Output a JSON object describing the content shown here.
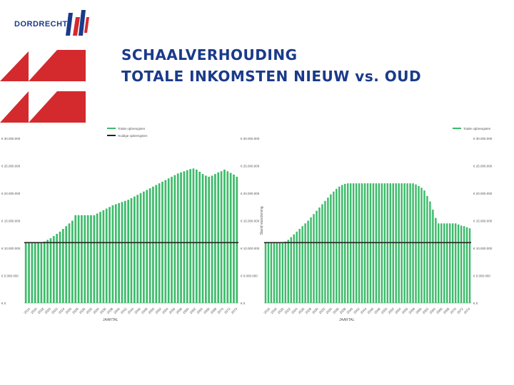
{
  "header": {
    "logo_text": "DORDRECHT",
    "title_line1": "SCHAALVERHOUDING",
    "title_line2": "TOTALE INKOMSTEN NIEUW vs. OUD"
  },
  "colors": {
    "brand_blue": "#1a3a8a",
    "brand_red": "#d42a2e",
    "bar_green": "#3dbb6a",
    "baseline": "#222222"
  },
  "chart_data": [
    {
      "type": "bar",
      "legend": [
        "Totale opbrengsten",
        "Huidige opbrengsten"
      ],
      "xlabel": "JAARTAL",
      "ylabel": "",
      "y_ticks_left": [
        "€ 0",
        "€ 5.000.000",
        "€ 10.000.000",
        "€ 15.000.000",
        "€ 20.000.000",
        "€ 25.000.000",
        "€ 30.000.000"
      ],
      "y_ticks_right": [
        "€ 0",
        "€ 5.000.000",
        "€ 10.000.000",
        "€ 15.000.000",
        "€ 20.000.000",
        "€ 25.000.000",
        "€ 30.000.000"
      ],
      "x_ticks": [
        "2014",
        "2016",
        "2018",
        "2020",
        "2022",
        "2024",
        "2026",
        "2028",
        "2030",
        "2032",
        "2034",
        "2036",
        "2038",
        "2040",
        "2042",
        "2044",
        "2046",
        "2048",
        "2050",
        "2052",
        "2054",
        "2056",
        "2058",
        "2060",
        "2062",
        "2064",
        "2066",
        "2068",
        "2070",
        "2072",
        "2074"
      ],
      "ylim": [
        0,
        30000000
      ],
      "baseline_value": 11000000,
      "series": [
        {
          "name": "Totale opbrengsten",
          "values": [
            11000000,
            11000000,
            11000000,
            11000000,
            11000000,
            11000000,
            11200000,
            11500000,
            11800000,
            12200000,
            12600000,
            13000000,
            13500000,
            14000000,
            14500000,
            15000000,
            16000000,
            16000000,
            16000000,
            16000000,
            16000000,
            16000000,
            16000000,
            16300000,
            16600000,
            16900000,
            17200000,
            17500000,
            17800000,
            18000000,
            18200000,
            18400000,
            18600000,
            18800000,
            19100000,
            19400000,
            19700000,
            20000000,
            20300000,
            20600000,
            20900000,
            21200000,
            21500000,
            21800000,
            22100000,
            22400000,
            22700000,
            23000000,
            23300000,
            23600000,
            23800000,
            24000000,
            24200000,
            24400000,
            24500000,
            24300000,
            23900000,
            23500000,
            23200000,
            23000000,
            23200000,
            23500000,
            23800000,
            24000000,
            24300000,
            24000000,
            23700000,
            23400000,
            23000000
          ]
        }
      ]
    },
    {
      "type": "bar",
      "legend": [
        "Totale opbrengsten"
      ],
      "xlabel": "JAARTAL",
      "ylabel": "Stand voorziening",
      "y_ticks_right": [
        "€ 0",
        "€ 5.000.000",
        "€ 10.000.000",
        "€ 15.000.000",
        "€ 20.000.000",
        "€ 25.000.000",
        "€ 30.000.000"
      ],
      "x_ticks": [
        "2016",
        "2018",
        "2020",
        "2022",
        "2024",
        "2026",
        "2028",
        "2030",
        "2032",
        "2034",
        "2036",
        "2038",
        "2040",
        "2042",
        "2044",
        "2046",
        "2048",
        "2050",
        "2052",
        "2054",
        "2056",
        "2058",
        "2060",
        "2062",
        "2064",
        "2066",
        "2068",
        "2070",
        "2072",
        "2074"
      ],
      "ylim": [
        0,
        30000000
      ],
      "baseline_value": 11000000,
      "series": [
        {
          "name": "Totale opbrengsten",
          "values": [
            11000000,
            11000000,
            11000000,
            11000000,
            11000000,
            11000000,
            11000000,
            11200000,
            11500000,
            12000000,
            12500000,
            13000000,
            13500000,
            14000000,
            14500000,
            15000000,
            15600000,
            16200000,
            16800000,
            17400000,
            18000000,
            18600000,
            19200000,
            19800000,
            20300000,
            20800000,
            21200000,
            21500000,
            21700000,
            21800000,
            21800000,
            21800000,
            21800000,
            21800000,
            21800000,
            21800000,
            21800000,
            21800000,
            21800000,
            21800000,
            21800000,
            21800000,
            21800000,
            21800000,
            21800000,
            21800000,
            21800000,
            21800000,
            21800000,
            21800000,
            21800000,
            21800000,
            21800000,
            21600000,
            21300000,
            21000000,
            20500000,
            19500000,
            18500000,
            17000000,
            15500000,
            14500000,
            14500000,
            14500000,
            14500000,
            14500000,
            14500000,
            14500000,
            14300000,
            14100000,
            14000000,
            13800000,
            13600000
          ]
        }
      ]
    }
  ]
}
